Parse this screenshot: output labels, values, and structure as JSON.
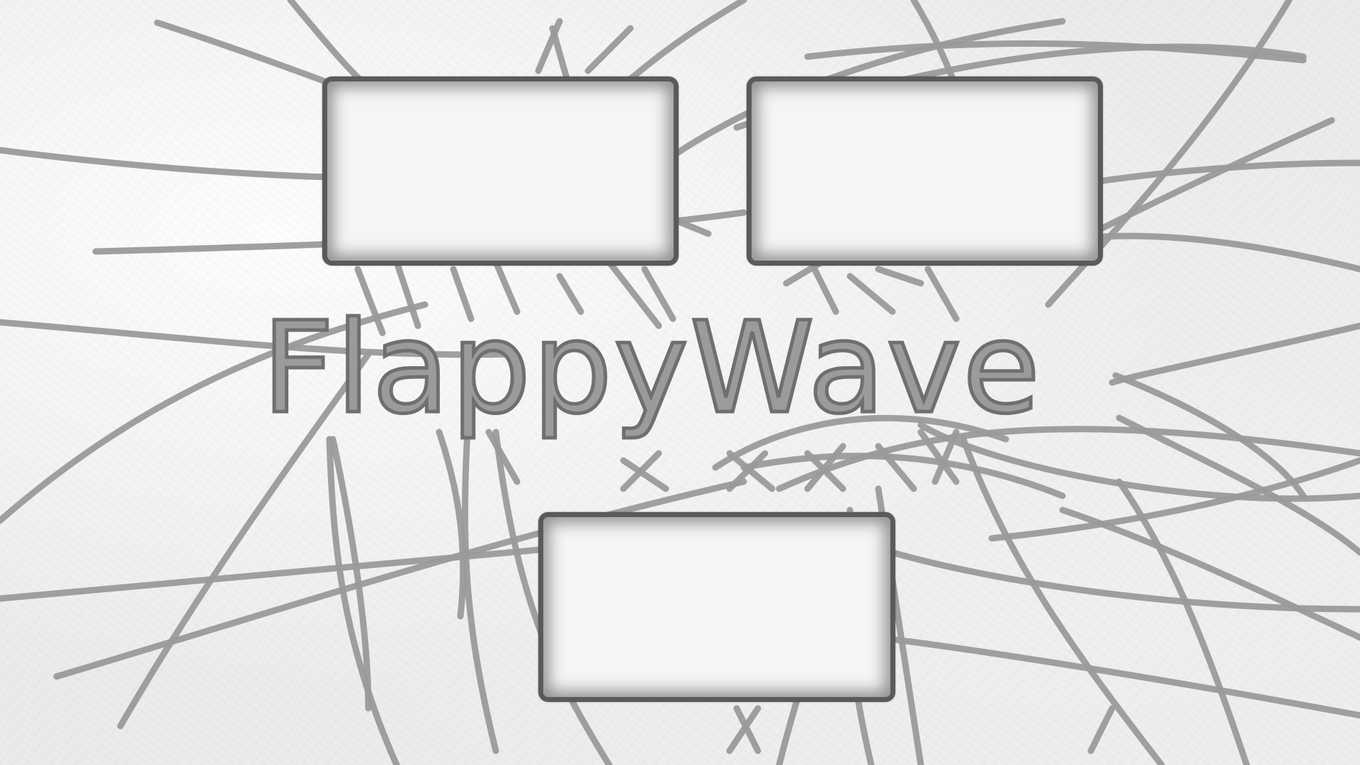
{
  "game": {
    "title": "FlappyWave"
  },
  "menu": {
    "buttons": [
      {
        "label": ""
      },
      {
        "label": ""
      },
      {
        "label": ""
      }
    ]
  },
  "colors": {
    "background": "#f0f0f0",
    "strand": "#9a9a9a",
    "button_border": "#5a5a5a",
    "title_fill": "#9b9b9b",
    "title_outline": "#6f6f6f"
  }
}
